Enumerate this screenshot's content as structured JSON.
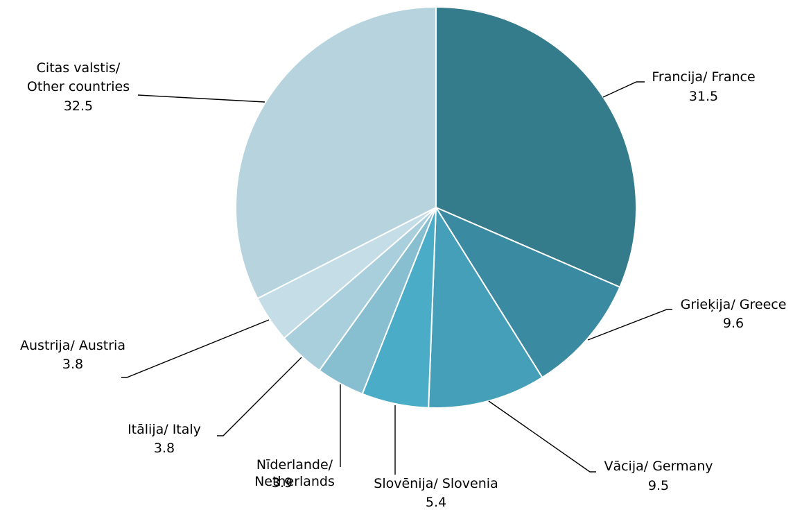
{
  "chart_data": {
    "type": "pie",
    "start": "12 o'clock",
    "direction": "clockwise",
    "slices": [
      {
        "label": [
          "Francija/ France"
        ],
        "value": 31.5,
        "value_text": "31.5",
        "color": "#347b8c"
      },
      {
        "label": [
          "Grieķija/ Greece"
        ],
        "value": 9.6,
        "value_text": "9.6",
        "color": "#3a8aa1"
      },
      {
        "label": [
          "Vācija/ Germany"
        ],
        "value": 9.5,
        "value_text": "9.5",
        "color": "#469fb8"
      },
      {
        "label": [
          "Slovēnija/ Slovenia"
        ],
        "value": 5.4,
        "value_text": "5.4",
        "color": "#4aacc7"
      },
      {
        "label": [
          "Nīderlande/",
          "Netherlands"
        ],
        "value": 3.9,
        "value_text": "3.9",
        "color": "#88bfd0"
      },
      {
        "label": [
          "Itālija/ Italy"
        ],
        "value": 3.8,
        "value_text": "3.8",
        "color": "#a9cfdc"
      },
      {
        "label": [
          "Austrija/ Austria"
        ],
        "value": 3.8,
        "value_text": "3.8",
        "color": "#c5dde6"
      },
      {
        "label": [
          "Citas valstis/",
          "Other countries"
        ],
        "value": 32.5,
        "value_text": "32.5",
        "color": "#b7d4de"
      }
    ]
  }
}
